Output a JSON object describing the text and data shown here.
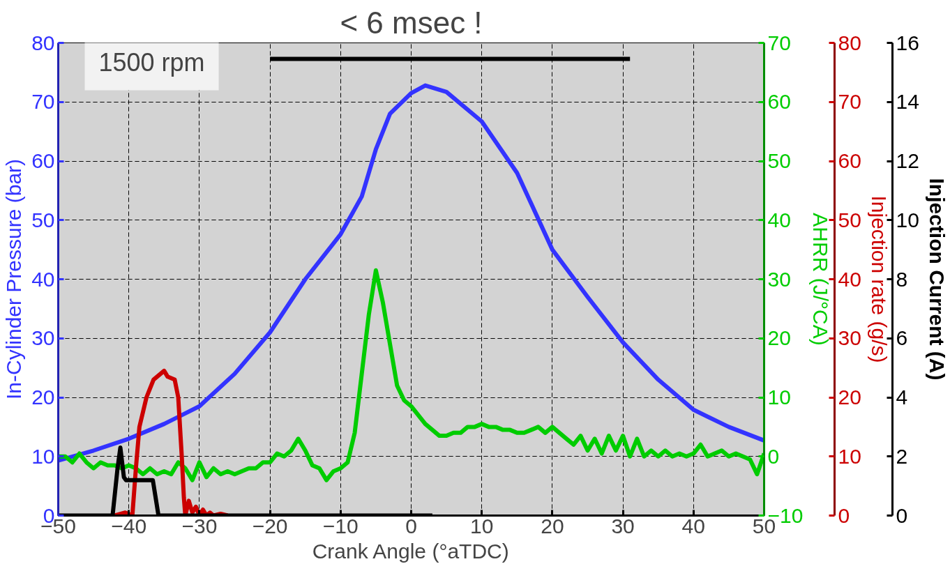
{
  "chart_data": [
    {
      "type": "line",
      "xlabel": "Crank Angle (°aTDC)",
      "ylabel": "In-Cylinder Pressure (bar)",
      "y2label": "AHRR (J/°CA)",
      "y3label": "Injection rate (g/s)",
      "xlim": [
        -50,
        50
      ],
      "xticks": [
        -50,
        -40,
        -30,
        -20,
        -10,
        0,
        10,
        20,
        30,
        40,
        50
      ],
      "ylim": [
        0,
        80
      ],
      "yticks": [
        0,
        10,
        20,
        30,
        40,
        50,
        60,
        70,
        80
      ],
      "y2lim": [
        -10,
        70
      ],
      "y2ticks": [
        -10,
        0,
        10,
        20,
        30,
        40,
        50,
        60,
        70
      ],
      "y3lim": [
        0,
        80
      ],
      "y3ticks": [
        0,
        10,
        20,
        30,
        40,
        50,
        60,
        70,
        80
      ],
      "grid": true,
      "line_style": "solid",
      "series": [
        {
          "color": "#3333ff",
          "axis": "y",
          "x": [
            -50,
            -45,
            -40,
            -35,
            -30,
            -25,
            -20,
            -15,
            -10,
            -7,
            -5,
            -3,
            0,
            2,
            5,
            10,
            15,
            20,
            25,
            30,
            35,
            40,
            45,
            50
          ],
          "values": [
            9.3,
            11,
            13,
            15.5,
            18.5,
            24,
            31,
            40,
            47.6,
            54,
            62,
            68,
            71.5,
            72.8,
            71.7,
            66.7,
            58,
            45,
            37,
            29.3,
            23,
            17.9,
            15,
            12.7
          ]
        },
        {
          "color": "#00cc00",
          "axis": "y2",
          "x": [
            -50,
            -49,
            -48,
            -47,
            -46,
            -45,
            -44,
            -43,
            -42,
            -41,
            -40,
            -39,
            -38,
            -37,
            -36,
            -35,
            -34,
            -33,
            -32,
            -31,
            -30,
            -29,
            -28,
            -27,
            -26,
            -25,
            -24,
            -23,
            -22,
            -21,
            -20,
            -19,
            -18,
            -17,
            -16,
            -15,
            -14,
            -13,
            -12,
            -11,
            -10,
            -9,
            -8,
            -7,
            -6,
            -5,
            -4,
            -3,
            -2,
            -1,
            0,
            1,
            2,
            3,
            4,
            5,
            6,
            7,
            8,
            9,
            10,
            11,
            12,
            13,
            14,
            15,
            16,
            17,
            18,
            19,
            20,
            21,
            22,
            23,
            24,
            25,
            26,
            27,
            28,
            29,
            30,
            31,
            32,
            33,
            34,
            35,
            36,
            37,
            38,
            39,
            40,
            41,
            42,
            43,
            44,
            45,
            46,
            47,
            48,
            49,
            50
          ],
          "values": [
            0,
            0,
            -1,
            0.5,
            -1,
            -2,
            -1,
            -1.5,
            -1.5,
            -2,
            -1.5,
            -2,
            -3,
            -2,
            -3,
            -2.5,
            -3,
            -1,
            -2,
            -4,
            -1,
            -3.5,
            -2,
            -3,
            -2.5,
            -3,
            -2.5,
            -2,
            -2,
            -1,
            -1,
            0.5,
            0,
            1,
            3,
            1,
            -1.5,
            -2,
            -4,
            -2.5,
            -2,
            -1,
            4,
            14,
            24,
            31.5,
            26,
            19,
            12,
            9.5,
            8.5,
            7,
            5.5,
            4.5,
            3.5,
            3.5,
            4,
            4,
            5,
            5,
            5.5,
            5,
            5,
            4.5,
            4.5,
            4,
            4,
            4.5,
            5,
            4,
            5,
            4,
            3,
            2,
            3.5,
            1,
            3,
            0.5,
            3.5,
            1,
            3.5,
            0,
            3,
            0,
            1,
            0,
            1,
            0,
            0.5,
            0,
            0.5,
            2,
            0,
            0.5,
            1,
            0,
            0.5,
            0,
            -0.5,
            -3,
            0.5
          ]
        },
        {
          "color": "#cc0000",
          "axis": "y3",
          "x": [
            -42,
            -40.5,
            -39.5,
            -39,
            -38.5,
            -37.5,
            -36.5,
            -35.5,
            -35,
            -34.5,
            -33.5,
            -33,
            -32.5,
            -32.2,
            -32,
            -31.5,
            -31,
            -30.5,
            -30,
            -29.5,
            -29,
            -28.5,
            -28,
            -27,
            -26
          ],
          "values": [
            0,
            0.5,
            0,
            8,
            15,
            20,
            23,
            24,
            24.5,
            23.5,
            23,
            20,
            10,
            3,
            0,
            2.5,
            0.5,
            1.5,
            0,
            1,
            0,
            0.5,
            0,
            0.3,
            0
          ]
        },
        {
          "color": "#000000",
          "axis": "y",
          "x": [
            -20,
            31
          ],
          "values": [
            77.3,
            77.3
          ]
        }
      ],
      "annotations": [
        "< 6 msec !",
        "1500 rpm"
      ]
    },
    {
      "type": "line",
      "ylabel": "Injection Current (A)",
      "xlim": [
        -50,
        50
      ],
      "ylim": [
        0,
        16
      ],
      "yticks": [
        0,
        2,
        4,
        6,
        8,
        10,
        12,
        14,
        16
      ],
      "tick_labels": "y",
      "grid": true,
      "series": [
        {
          "color": "#000000",
          "x": [
            -50,
            -42.3,
            -41.6,
            -41.2,
            -40.7,
            -40.4,
            -36.6,
            -36.2,
            -35.8,
            3
          ],
          "values": [
            0,
            0,
            1.6,
            2.3,
            1.3,
            1.2,
            1.2,
            0.6,
            0,
            0
          ]
        }
      ]
    }
  ]
}
